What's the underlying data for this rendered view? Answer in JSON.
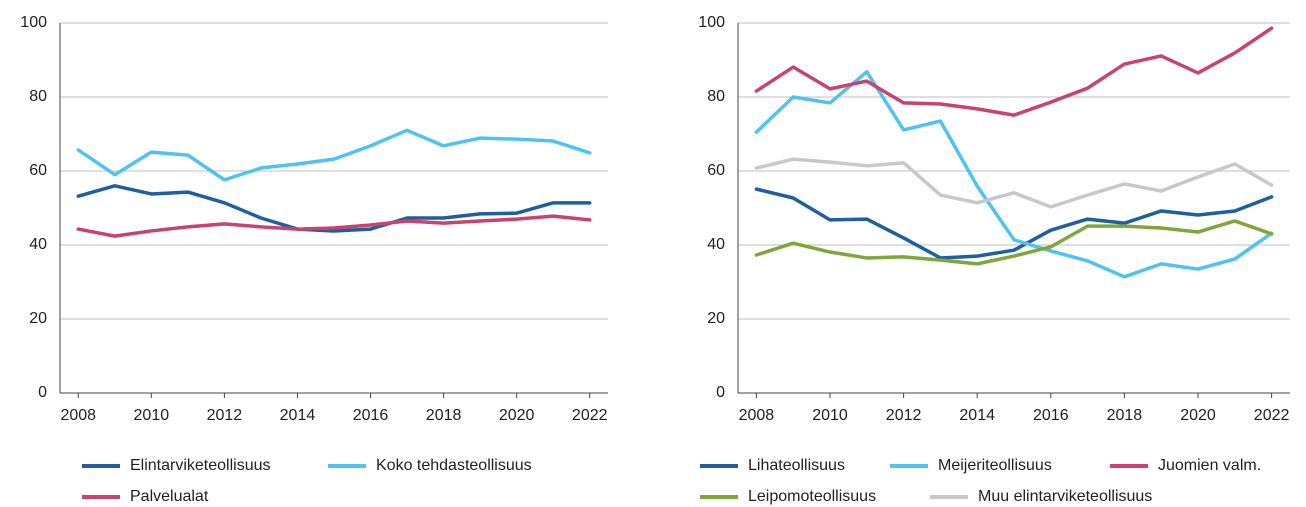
{
  "chart_data": [
    {
      "type": "line",
      "x": [
        2008,
        2009,
        2010,
        2011,
        2012,
        2013,
        2014,
        2015,
        2016,
        2017,
        2018,
        2019,
        2020,
        2021,
        2022
      ],
      "xlim": [
        2007.5,
        2022.5
      ],
      "xticks": [
        2008,
        2010,
        2012,
        2014,
        2016,
        2018,
        2020,
        2022
      ],
      "ylim": [
        0,
        100
      ],
      "yticks": [
        0,
        20,
        40,
        60,
        80,
        100
      ],
      "grid": true,
      "series": [
        {
          "name": "Elintarviketeollisuus",
          "color": "#1f5fa0",
          "values": [
            53.2,
            56,
            53.8,
            54.3,
            51.4,
            47.3,
            44.3,
            43.8,
            44.3,
            47.3,
            47.3,
            48.4,
            48.6,
            51.4,
            51.4
          ]
        },
        {
          "name": "Koko tehdasteollisuus",
          "color": "#4fc3ef",
          "values": [
            65.7,
            59,
            65.1,
            64.3,
            57.6,
            60.8,
            61.9,
            63.2,
            66.8,
            71,
            66.8,
            68.9,
            68.6,
            68.1,
            64.9
          ]
        },
        {
          "name": "Palvelualat",
          "color": "#c8436f",
          "values": [
            44.3,
            42.4,
            43.8,
            44.9,
            45.7,
            44.9,
            44.3,
            44.6,
            45.4,
            46.5,
            45.9,
            46.5,
            47,
            47.8,
            46.8
          ]
        }
      ]
    },
    {
      "type": "line",
      "x": [
        2008,
        2009,
        2010,
        2011,
        2012,
        2013,
        2014,
        2015,
        2016,
        2017,
        2018,
        2019,
        2020,
        2021,
        2022
      ],
      "xlim": [
        2007.5,
        2022.5
      ],
      "xticks": [
        2008,
        2010,
        2012,
        2014,
        2016,
        2018,
        2020,
        2022
      ],
      "ylim": [
        0,
        100
      ],
      "yticks": [
        0,
        20,
        40,
        60,
        80,
        100
      ],
      "grid": true,
      "series": [
        {
          "name": "Lihateollisuus",
          "color": "#1f5fa0",
          "values": [
            55.1,
            52.7,
            46.8,
            47,
            41.9,
            36.5,
            37,
            38.6,
            44,
            47,
            45.9,
            49.2,
            48.1,
            49.2,
            53
          ]
        },
        {
          "name": "Meijeriteollisuus",
          "color": "#4fc3ef",
          "values": [
            70.5,
            80,
            78.4,
            86.8,
            71.1,
            73.5,
            55.9,
            41.4,
            38.4,
            35.7,
            31.4,
            34.9,
            33.5,
            36.2,
            43.2
          ]
        },
        {
          "name": "Juomien valm.",
          "color": "#c8436f",
          "values": [
            81.6,
            88.1,
            82.2,
            84.3,
            78.4,
            78.1,
            76.8,
            75.1,
            78.6,
            82.4,
            88.9,
            91.1,
            86.5,
            91.9,
            98.6
          ]
        },
        {
          "name": "Leipomoteollisuus",
          "color": "#7fa63a",
          "values": [
            37.3,
            40.5,
            38.1,
            36.5,
            36.8,
            35.9,
            34.9,
            37,
            39.5,
            45.1,
            45.1,
            44.6,
            43.5,
            46.5,
            43
          ]
        },
        {
          "name": "Muu elintarviketeollisuus",
          "color": "#c8c8c8",
          "values": [
            60.8,
            63.2,
            62.4,
            61.4,
            62.2,
            53.5,
            51.4,
            54.1,
            50.3,
            53.5,
            56.5,
            54.6,
            58.4,
            61.9,
            56.2
          ]
        }
      ]
    }
  ]
}
